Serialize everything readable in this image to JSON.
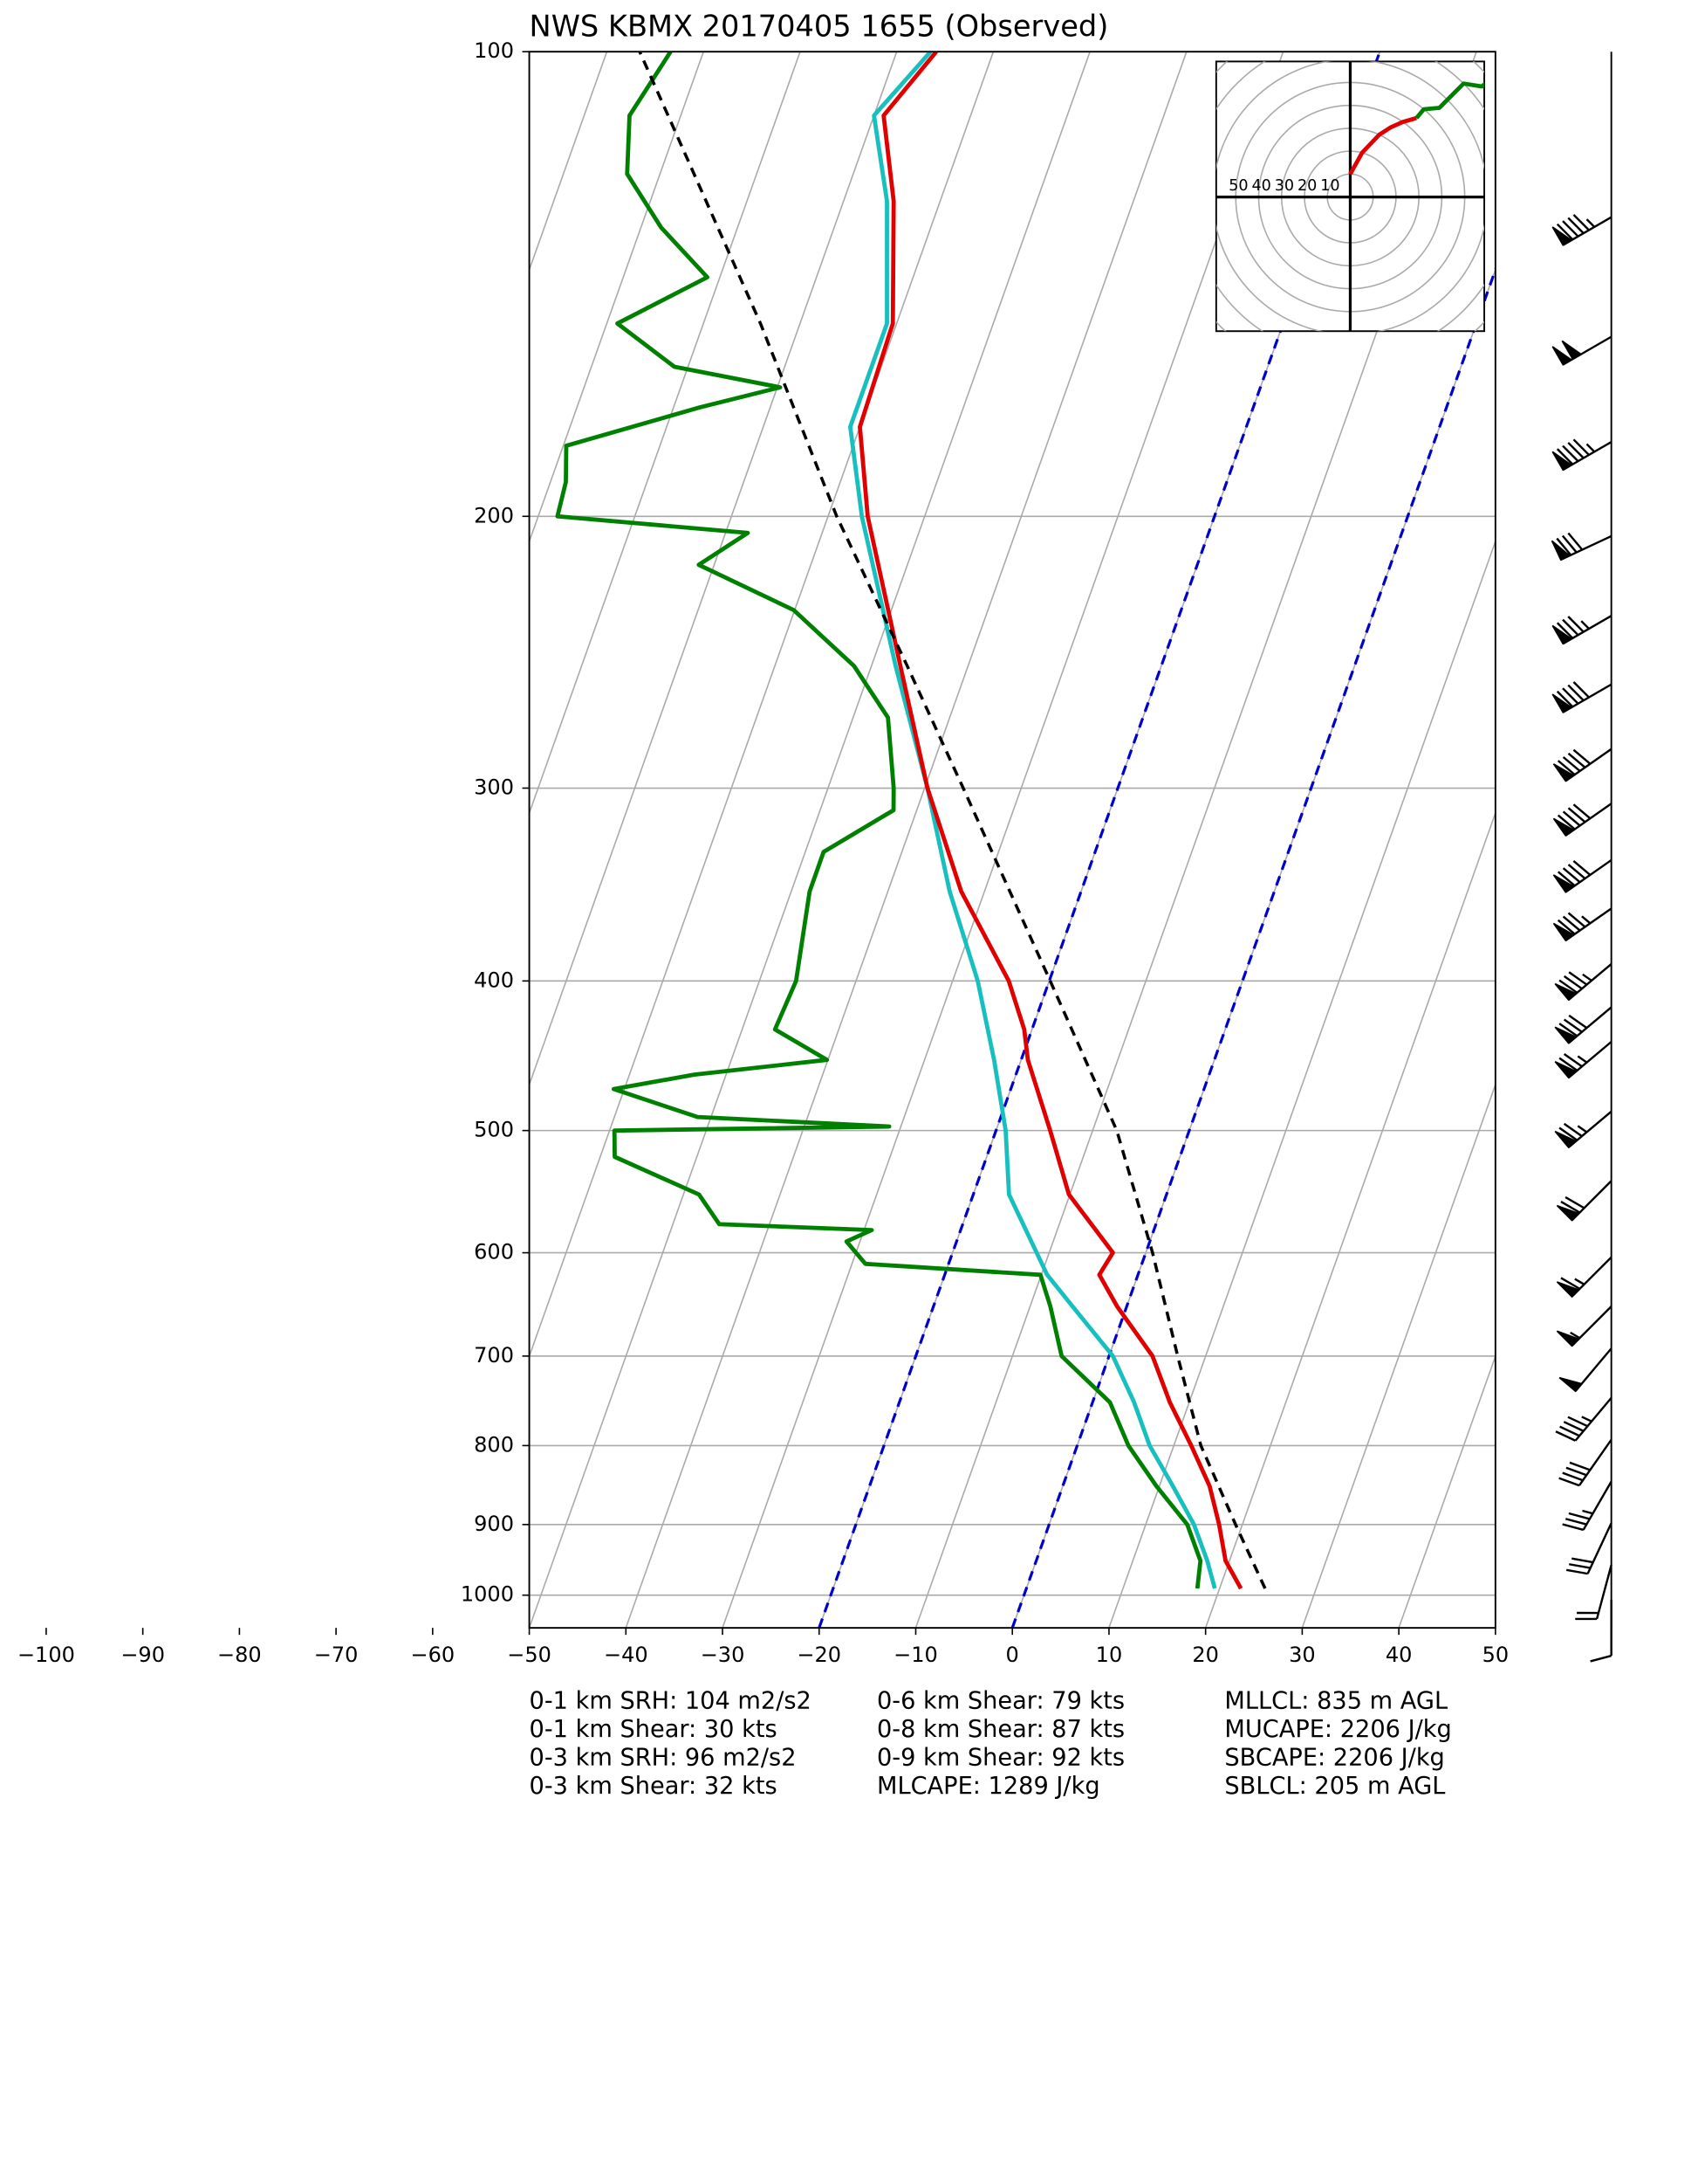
{
  "chart_data": {
    "type": "skewt",
    "title": "NWS KBMX 20170405 1655   (Observed)",
    "log_y": true,
    "ylim": [
      1050,
      100
    ],
    "yticks": [
      100,
      200,
      300,
      400,
      500,
      600,
      700,
      800,
      900,
      1000
    ],
    "xlim": [
      -50,
      50
    ],
    "xticks": [
      {
        "value": -100,
        "label": "−100"
      },
      {
        "value": -90,
        "label": "−90"
      },
      {
        "value": -80,
        "label": "−80"
      },
      {
        "value": -70,
        "label": "−70"
      },
      {
        "value": -60,
        "label": "−60"
      },
      {
        "value": -50,
        "label": "−50"
      },
      {
        "value": -40,
        "label": "−40"
      },
      {
        "value": -30,
        "label": "−30"
      },
      {
        "value": -20,
        "label": "−20"
      },
      {
        "value": -10,
        "label": "−10"
      },
      0,
      10,
      20,
      30,
      40,
      50
    ],
    "grid": true,
    "highlight_isotherms": {
      "values": [
        -20,
        0
      ],
      "color": "#0000cc"
    },
    "series": [
      {
        "color": "#008000",
        "style": "solid",
        "pressure": [
          990,
          950,
          900,
          850,
          800,
          750,
          700,
          650,
          620,
          610,
          590,
          580,
          575,
          550,
          520,
          500,
          497,
          490,
          470,
          460,
          450,
          430,
          400,
          350,
          330,
          310,
          300,
          270,
          250,
          230,
          215,
          205,
          200,
          190,
          180,
          170,
          165,
          160,
          150,
          140,
          130,
          120,
          110,
          100
        ],
        "values": [
          17.7,
          17.0,
          14.3,
          9.7,
          5.3,
          1.8,
          -4.9,
          -7.9,
          -10.1,
          -28.6,
          -31.4,
          -29.2,
          -45.2,
          -48.4,
          -58.5,
          -59.5,
          -31.2,
          -51.4,
          -61.1,
          -53.3,
          -40.1,
          -46.6,
          -46.2,
          -48.1,
          -48.1,
          -42.4,
          -43.2,
          -46.4,
          -51.8,
          -60.1,
          -71.6,
          -67.7,
          -88.0,
          -88.4,
          -89.7,
          -77.3,
          -69.7,
          -81.4,
          -88.9,
          -81.3,
          -87.9,
          -93.4,
          -95.3,
          -93.4
        ]
      },
      {
        "color": "#17bfbf",
        "style": "solid",
        "pressure": [
          990,
          950,
          900,
          850,
          800,
          750,
          700,
          650,
          620,
          600,
          550,
          500,
          450,
          400,
          350,
          300,
          250,
          200,
          175,
          150,
          125,
          110,
          100
        ],
        "values": [
          19.5,
          17.7,
          15.0,
          11.4,
          7.5,
          4.3,
          0.4,
          -5.6,
          -9.4,
          -11.3,
          -16.3,
          -19.0,
          -22.8,
          -27.4,
          -33.6,
          -39.7,
          -47.5,
          -56.5,
          -61.0,
          -61.0,
          -65.5,
          -70.0,
          -66.5
        ]
      },
      {
        "color": "#e00000",
        "style": "solid",
        "pressure": [
          990,
          950,
          900,
          850,
          800,
          750,
          700,
          650,
          620,
          600,
          550,
          500,
          450,
          430,
          400,
          350,
          300,
          250,
          200,
          175,
          150,
          125,
          110,
          100
        ],
        "values": [
          22.2,
          19.6,
          17.6,
          15.2,
          11.8,
          8.0,
          4.5,
          -1.0,
          -4.0,
          -3.4,
          -10.1,
          -14.4,
          -19.3,
          -20.8,
          -24.2,
          -32.4,
          -39.7,
          -47.0,
          -55.9,
          -60.0,
          -60.4,
          -64.8,
          -69.0,
          -65.9
        ]
      },
      {
        "color": "#000000",
        "style": "dashed",
        "pressure": [
          990,
          900,
          800,
          700,
          600,
          500,
          400,
          300,
          250,
          200,
          150,
          100
        ],
        "values": [
          24.7,
          19.3,
          12.8,
          7.1,
          0.7,
          -7.5,
          -19.9,
          -36.0,
          -46.3,
          -59.1,
          -74.1,
          -96.6
        ]
      }
    ],
    "wind_barbs": {
      "pressure": [
        128,
        153,
        179,
        206,
        232,
        257,
        283,
        307,
        334,
        359,
        390,
        416,
        438,
        486,
        539,
        604,
        650,
        692,
        745,
        793,
        844,
        898,
        956,
        1007
      ],
      "speed": [
        95,
        100,
        95,
        80,
        85,
        90,
        90,
        90,
        90,
        85,
        85,
        80,
        75,
        75,
        70,
        65,
        55,
        50,
        45,
        40,
        35,
        30,
        20,
        10
      ],
      "direction": [
        240,
        240,
        240,
        245,
        240,
        240,
        235,
        235,
        235,
        235,
        230,
        230,
        230,
        230,
        225,
        225,
        225,
        220,
        220,
        215,
        210,
        205,
        195,
        180
      ]
    },
    "hodograph": {
      "rings": [
        10,
        20,
        30,
        40,
        50
      ],
      "low_color": "#e00000",
      "high_color": "#008000",
      "split_pressure": 700
    },
    "stats": [
      [
        "0-1 km SRH: 104 m2/s2",
        "0-1 km Shear: 30 kts",
        "0-3 km SRH: 96 m2/s2",
        "0-3 km Shear: 32 kts"
      ],
      [
        "0-6 km Shear: 79 kts",
        "0-8 km Shear: 87 kts",
        "0-9 km Shear: 92 kts",
        "MLCAPE: 1289 J/kg"
      ],
      [
        "MLLCL: 835 m AGL",
        "MUCAPE: 2206 J/kg",
        "SBCAPE: 2206 J/kg",
        "SBLCL: 205 m AGL"
      ]
    ]
  }
}
